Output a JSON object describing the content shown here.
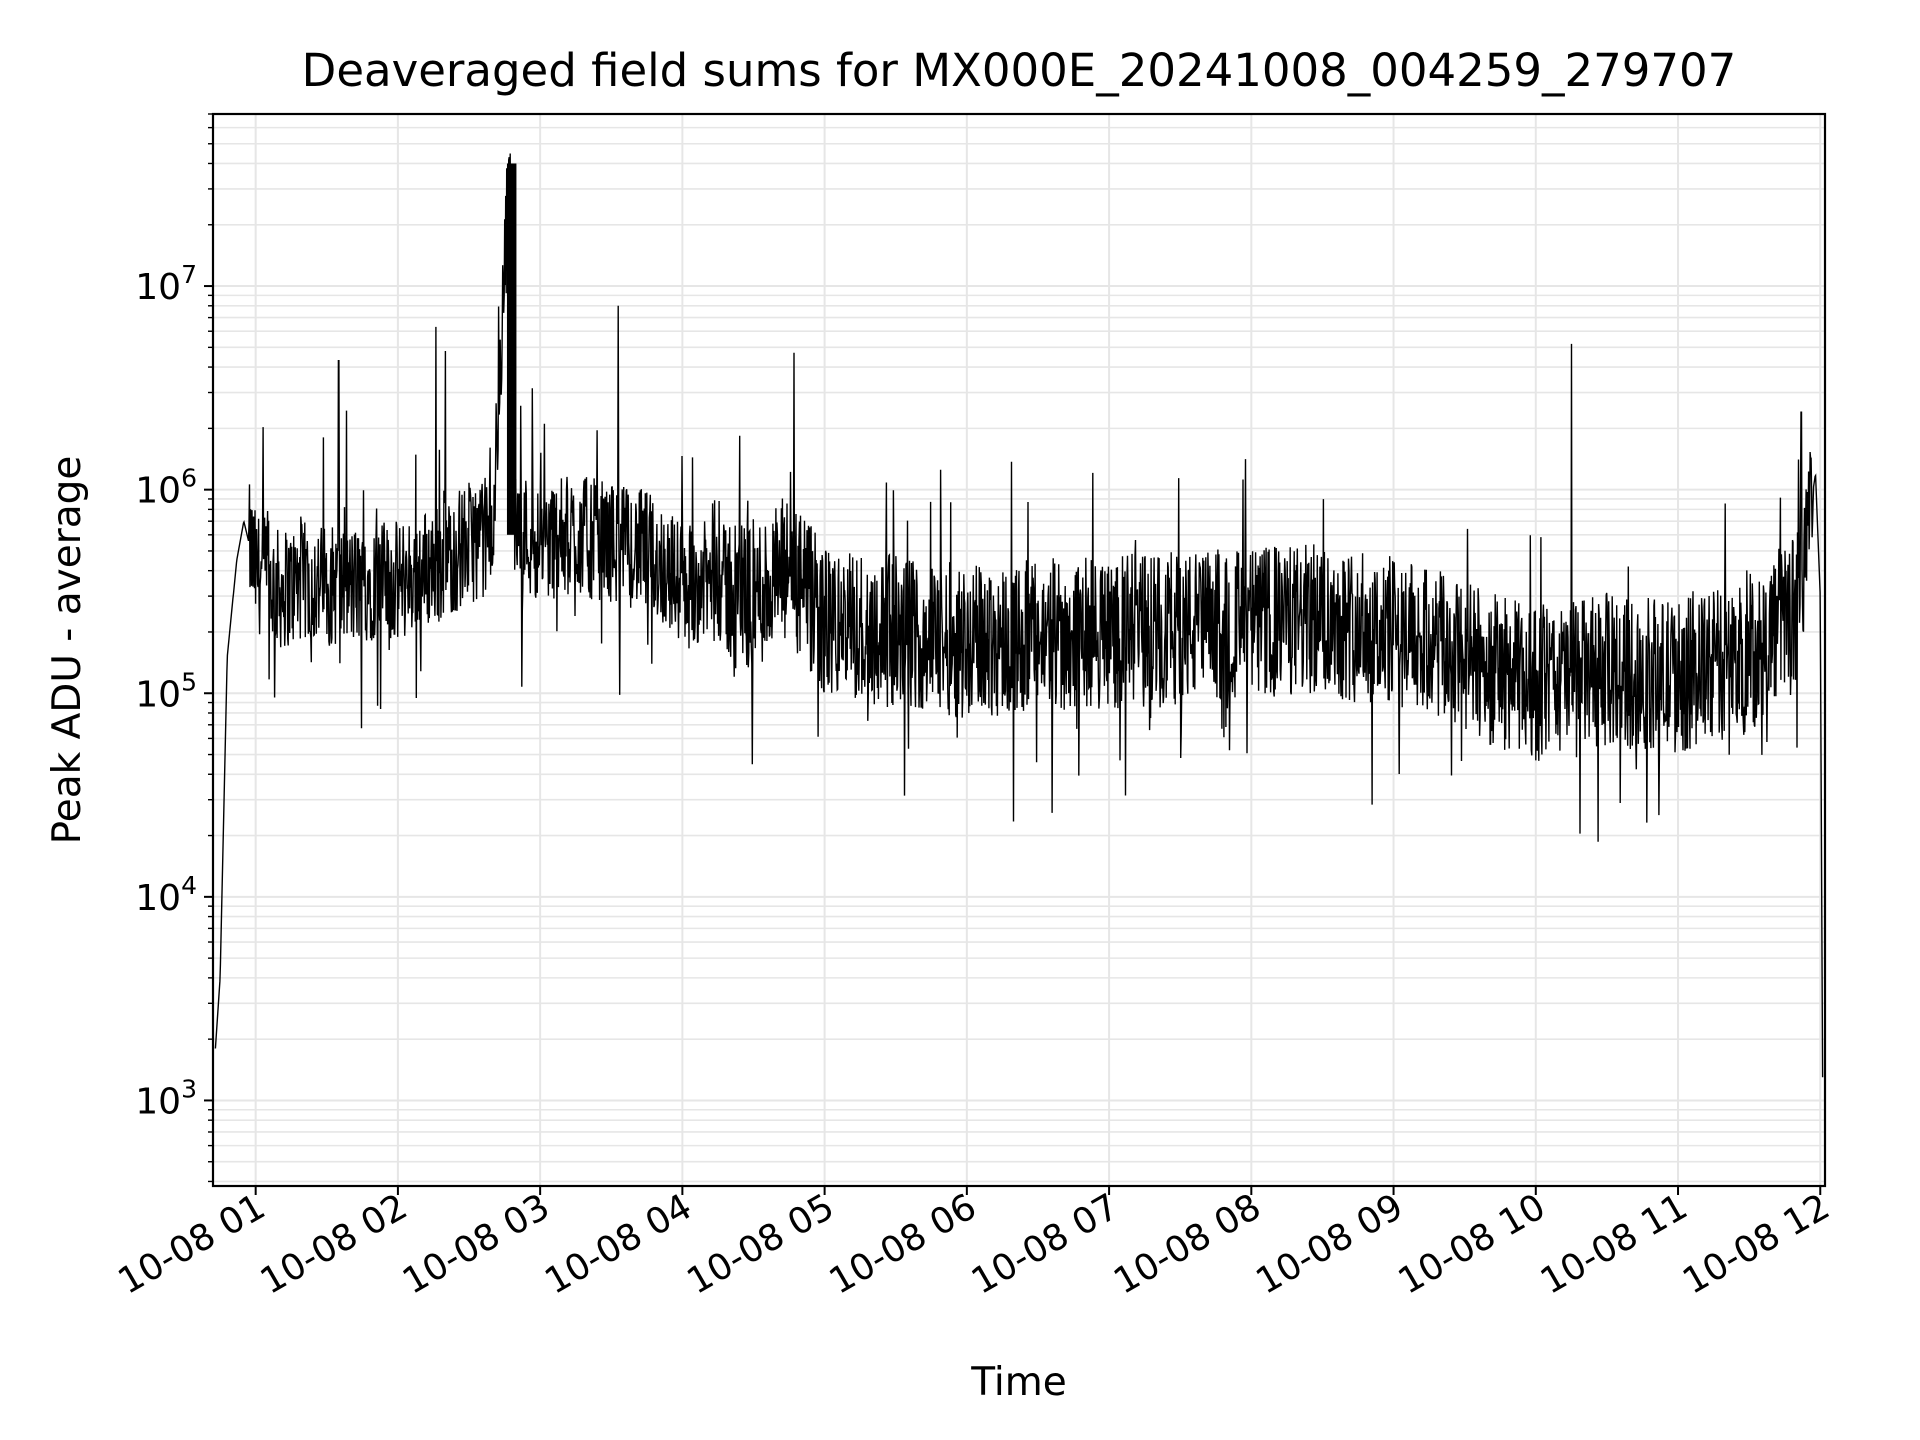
{
  "chart_data": {
    "type": "line",
    "title": "Deaveraged field sums for MX000E_20241008_004259_279707",
    "xlabel": "Time",
    "ylabel": "Peak ADU - average",
    "yscale": "log",
    "grid": "on (major and minor)",
    "line_color": "#000000",
    "grid_color": "#e6e6e6",
    "xlim": [
      "10-08 00:42",
      "10-08 12:02"
    ],
    "ylim": [
      380,
      70000000
    ],
    "x_ticks": [
      "10-08 01",
      "10-08 02",
      "10-08 03",
      "10-08 04",
      "10-08 05",
      "10-08 06",
      "10-08 07",
      "10-08 08",
      "10-08 09",
      "10-08 10",
      "10-08 11",
      "10-08 12"
    ],
    "y_ticks": [
      {
        "base": "10",
        "exp": "3",
        "value": 1000
      },
      {
        "base": "10",
        "exp": "4",
        "value": 10000
      },
      {
        "base": "10",
        "exp": "5",
        "value": 100000
      },
      {
        "base": "10",
        "exp": "6",
        "value": 1000000
      },
      {
        "base": "10",
        "exp": "7",
        "value": 10000000
      }
    ],
    "series": [
      {
        "x": [
          "10-08 00:43",
          "10-08 00:45",
          "10-08 00:48",
          "10-08 00:52",
          "10-08 00:55",
          "10-08 01:00",
          "10-08 01:10",
          "10-08 01:20",
          "10-08 01:30",
          "10-08 01:40",
          "10-08 01:50",
          "10-08 02:00",
          "10-08 02:10",
          "10-08 02:20",
          "10-08 02:30",
          "10-08 02:40",
          "10-08 02:47",
          "10-08 02:50",
          "10-08 03:00",
          "10-08 03:15",
          "10-08 03:30",
          "10-08 03:45",
          "10-08 04:00",
          "10-08 04:15",
          "10-08 04:30",
          "10-08 04:45",
          "10-08 05:00",
          "10-08 05:30",
          "10-08 06:00",
          "10-08 06:30",
          "10-08 07:00",
          "10-08 07:30",
          "10-08 08:00",
          "10-08 08:30",
          "10-08 09:00",
          "10-08 09:30",
          "10-08 10:00",
          "10-08 10:30",
          "10-08 11:00",
          "10-08 11:30",
          "10-08 11:50",
          "10-08 11:58",
          "10-08 12:00",
          "10-08 12:01"
        ],
        "values": [
          1800,
          4000,
          150000,
          450000,
          700000,
          400000,
          320000,
          350000,
          340000,
          330000,
          360000,
          350000,
          400000,
          450000,
          550000,
          600000,
          40000000,
          650000,
          550000,
          600000,
          550000,
          500000,
          350000,
          350000,
          300000,
          400000,
          220000,
          200000,
          180000,
          190000,
          200000,
          210000,
          220000,
          230000,
          200000,
          150000,
          110000,
          130000,
          120000,
          150000,
          280000,
          1200000,
          300000,
          1300
        ]
      }
    ],
    "spikes": [
      {
        "x": "10-08 01:35",
        "y": 4300000
      },
      {
        "x": "10-08 02:16",
        "y": 6300000
      },
      {
        "x": "10-08 02:20",
        "y": 4800000
      },
      {
        "x": "10-08 02:47",
        "y": 43000000
      },
      {
        "x": "10-08 03:33",
        "y": 8000000
      },
      {
        "x": "10-08 04:47",
        "y": 4700000
      },
      {
        "x": "10-08 10:15",
        "y": 5200000
      },
      {
        "x": "10-08 11:52",
        "y": 2400000
      }
    ]
  }
}
